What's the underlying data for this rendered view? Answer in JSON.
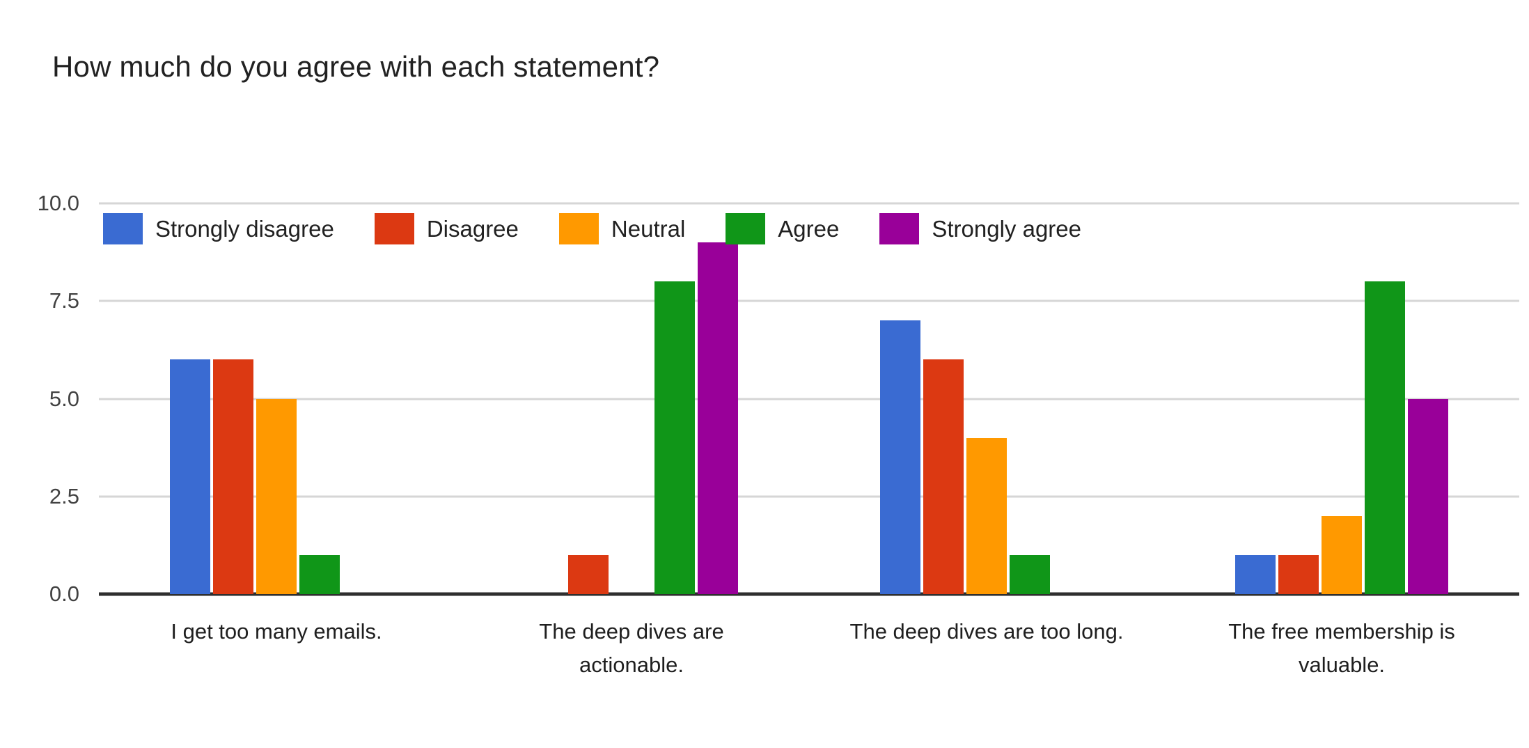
{
  "chart_data": {
    "type": "bar",
    "title": "How much do you agree with each statement?",
    "categories": [
      "I get too many emails.",
      "The deep dives are\nactionable.",
      "The deep dives are too long.",
      "The free membership is\nvaluable."
    ],
    "series": [
      {
        "name": "Strongly disagree",
        "color": "#3a6bd2",
        "values": [
          6,
          0,
          7,
          1
        ]
      },
      {
        "name": "Disagree",
        "color": "#dc3912",
        "values": [
          6,
          1,
          6,
          1
        ]
      },
      {
        "name": "Neutral",
        "color": "#ff9900",
        "values": [
          5,
          0,
          4,
          2
        ]
      },
      {
        "name": "Agree",
        "color": "#109618",
        "values": [
          1,
          8,
          1,
          8
        ]
      },
      {
        "name": "Strongly agree",
        "color": "#990099",
        "values": [
          0,
          9,
          0,
          5
        ]
      }
    ],
    "xlabel": "",
    "ylabel": "",
    "ylim": [
      0,
      10
    ],
    "yticks": [
      {
        "label": "10.0",
        "value": 10.0
      },
      {
        "label": "7.5",
        "value": 7.5
      },
      {
        "label": "5.0",
        "value": 5.0
      },
      {
        "label": "2.5",
        "value": 2.5
      },
      {
        "label": "0.0",
        "value": 0.0
      }
    ],
    "grid": true,
    "legend_position": "top-inside-left",
    "colors": {
      "gridline": "#d6d6d6",
      "baseline": "#2f2f2f",
      "title_text": "#212121",
      "tick_text": "#424242",
      "category_text": "#1f1f1f"
    }
  }
}
